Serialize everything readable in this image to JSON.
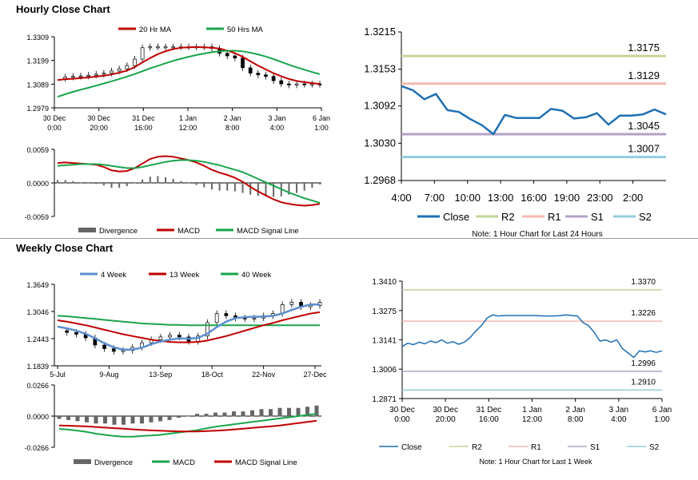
{
  "sections": {
    "hourly_title": "Hourly Close Chart",
    "weekly_title": "Weekly Close Chart"
  },
  "colors": {
    "close": "#1f6fb4",
    "ma_short": "#c00000",
    "ma_long": "#1aa54b",
    "divergence": "#666666",
    "macd": "#c00000",
    "signal": "#1aa54b",
    "r2": "#c3d69b",
    "r1": "#f2b8b0",
    "s1": "#b3a2c7",
    "s2": "#93cddd",
    "week4": "#5b8fd0",
    "week13": "#c00000",
    "week40": "#1aa54b",
    "weekly_macd": "#1aa54b",
    "weekly_signal": "#c00000"
  },
  "chart_data": [
    {
      "id": "hourly_price",
      "type": "candlestick",
      "title": "Hourly Close Chart",
      "legend": [
        "20 Hr MA",
        "50 Hrs MA"
      ],
      "y_ticks": [
        "1.3309",
        "1.3199",
        "1.3089",
        "1.2979"
      ],
      "ylim": [
        1.2979,
        1.3309
      ],
      "x_labels": [
        [
          "30 Dec",
          "0:00"
        ],
        [
          "30 Dec",
          "20:00"
        ],
        [
          "31 Dec",
          "16:00"
        ],
        [
          "1 Jan",
          "12:00"
        ],
        [
          "2 Jan",
          "8:00"
        ],
        [
          "3 Jan",
          "4:00"
        ],
        [
          "6 Jan",
          "1:00"
        ]
      ],
      "close": [
        1.3115,
        1.3122,
        1.3125,
        1.3127,
        1.313,
        1.3135,
        1.314,
        1.315,
        1.316,
        1.3175,
        1.3205,
        1.3258,
        1.3262,
        1.3262,
        1.3262,
        1.3262,
        1.3262,
        1.3262,
        1.3262,
        1.3262,
        1.3255,
        1.3232,
        1.322,
        1.321,
        1.3165,
        1.314,
        1.3132,
        1.3125,
        1.3105,
        1.309,
        1.3085,
        1.309,
        1.3088,
        1.309,
        1.3088
      ],
      "ma20": [
        1.3108,
        1.3112,
        1.3114,
        1.3117,
        1.312,
        1.3124,
        1.3128,
        1.3134,
        1.3142,
        1.3152,
        1.3168,
        1.319,
        1.321,
        1.3228,
        1.3242,
        1.3252,
        1.3258,
        1.326,
        1.3261,
        1.326,
        1.3258,
        1.3254,
        1.3245,
        1.3233,
        1.3216,
        1.3195,
        1.3175,
        1.3157,
        1.314,
        1.3125,
        1.3113,
        1.3104,
        1.3098,
        1.3094,
        1.309
      ],
      "ma50": [
        1.303,
        1.3042,
        1.3053,
        1.3063,
        1.3072,
        1.3082,
        1.3092,
        1.3102,
        1.3113,
        1.3124,
        1.3136,
        1.3149,
        1.3162,
        1.3174,
        1.3186,
        1.3197,
        1.3207,
        1.3216,
        1.3224,
        1.3231,
        1.3237,
        1.3241,
        1.3244,
        1.3244,
        1.3241,
        1.3235,
        1.3227,
        1.3217,
        1.3205,
        1.3192,
        1.3179,
        1.3167,
        1.3156,
        1.3145,
        1.3135
      ]
    },
    {
      "id": "hourly_macd",
      "type": "line",
      "legend": [
        "Divergence",
        "MACD",
        "MACD Signal Line"
      ],
      "y_ticks": [
        "0.0059",
        "0.0000",
        "-0.0059"
      ],
      "ylim": [
        -0.0059,
        0.0059
      ],
      "macd": [
        0.0035,
        0.0036,
        0.0035,
        0.0034,
        0.0033,
        0.0032,
        0.0028,
        0.0022,
        0.002,
        0.0021,
        0.0026,
        0.0034,
        0.0042,
        0.0046,
        0.0047,
        0.0046,
        0.0043,
        0.004,
        0.0036,
        0.003,
        0.0023,
        0.0018,
        0.0014,
        0.0009,
        0.0002,
        -0.0007,
        -0.0015,
        -0.0022,
        -0.0029,
        -0.0034,
        -0.0037,
        -0.0039,
        -0.004,
        -0.0039,
        -0.0037
      ],
      "signal": [
        0.003,
        0.0031,
        0.0032,
        0.0033,
        0.0033,
        0.0033,
        0.0032,
        0.003,
        0.0028,
        0.0026,
        0.0026,
        0.0028,
        0.0031,
        0.0034,
        0.0037,
        0.0039,
        0.004,
        0.004,
        0.0039,
        0.0037,
        0.0034,
        0.0031,
        0.0027,
        0.0023,
        0.0019,
        0.0013,
        0.0007,
        0.0001,
        -0.0005,
        -0.0011,
        -0.0017,
        -0.0022,
        -0.0027,
        -0.0031,
        -0.0035
      ]
    },
    {
      "id": "hourly_24h",
      "type": "line",
      "title": "",
      "y_ticks": [
        "1.3215",
        "1.3153",
        "1.3092",
        "1.3030",
        "1.2968"
      ],
      "ylim": [
        1.2968,
        1.3215
      ],
      "x_ticks": [
        "4:00",
        "7:00",
        "10:00",
        "13:00",
        "16:00",
        "19:00",
        "23:00",
        "2:00"
      ],
      "close": [
        1.3125,
        1.3118,
        1.3103,
        1.3112,
        1.3085,
        1.3082,
        1.307,
        1.306,
        1.3045,
        1.3077,
        1.3072,
        1.3072,
        1.3072,
        1.3087,
        1.3084,
        1.3071,
        1.3073,
        1.308,
        1.3061,
        1.3076,
        1.3076,
        1.3078,
        1.3086,
        1.3078
      ],
      "levels": {
        "R2": 1.3175,
        "R1": 1.3129,
        "S1": 1.3045,
        "S2": 1.3007
      },
      "legend": [
        "Close",
        "R2",
        "R1",
        "S1",
        "S2"
      ],
      "note": "Note: 1 Hour Chart for Last 24 Hours"
    },
    {
      "id": "weekly_price",
      "type": "candlestick",
      "title": "Weekly Close Chart",
      "legend": [
        "4 Week",
        "13 Week",
        "40 Week"
      ],
      "y_ticks": [
        "1.3649",
        "1.3046",
        "1.2443",
        "1.1839"
      ],
      "ylim": [
        1.1839,
        1.3649
      ],
      "x_labels": [
        "5-Jul",
        "9-Aug",
        "13-Sep",
        "18-Oct",
        "22-Nov",
        "27-Dec"
      ],
      "close": [
        1.262,
        1.258,
        1.254,
        1.246,
        1.23,
        1.222,
        1.216,
        1.218,
        1.225,
        1.235,
        1.242,
        1.248,
        1.252,
        1.248,
        1.238,
        1.25,
        1.28,
        1.3,
        1.295,
        1.29,
        1.288,
        1.29,
        1.295,
        1.3,
        1.32,
        1.325,
        1.315,
        1.318,
        1.325
      ],
      "w4": [
        1.271,
        1.267,
        1.262,
        1.255,
        1.245,
        1.234,
        1.225,
        1.22,
        1.22,
        1.224,
        1.232,
        1.238,
        1.242,
        1.245,
        1.244,
        1.246,
        1.255,
        1.27,
        1.282,
        1.29,
        1.292,
        1.293,
        1.293,
        1.295,
        1.3,
        1.308,
        1.315,
        1.32,
        1.32
      ],
      "w13": [
        1.285,
        1.282,
        1.278,
        1.274,
        1.269,
        1.264,
        1.259,
        1.254,
        1.25,
        1.246,
        1.242,
        1.239,
        1.237,
        1.236,
        1.236,
        1.237,
        1.24,
        1.245,
        1.25,
        1.256,
        1.262,
        1.268,
        1.274,
        1.279,
        1.285,
        1.29,
        1.295,
        1.3,
        1.303
      ],
      "w40": [
        1.295,
        1.294,
        1.292,
        1.29,
        1.288,
        1.286,
        1.284,
        1.282,
        1.28,
        1.278,
        1.277,
        1.276,
        1.275,
        1.275,
        1.274,
        1.274,
        1.274,
        1.274,
        1.274,
        1.274,
        1.274,
        1.274,
        1.274,
        1.274,
        1.274,
        1.274,
        1.274,
        1.274,
        1.274
      ]
    },
    {
      "id": "weekly_macd",
      "type": "bar",
      "legend": [
        "Divergence",
        "MACD",
        "MACD Signal Line"
      ],
      "y_ticks": [
        "0.0266",
        "0.0000",
        "-0.0266"
      ],
      "ylim": [
        -0.0266,
        0.0266
      ],
      "divergence": [
        -0.002,
        -0.003,
        -0.004,
        -0.005,
        -0.006,
        -0.006,
        -0.007,
        -0.007,
        -0.006,
        -0.006,
        -0.005,
        -0.004,
        -0.003,
        -0.001,
        0.0,
        0.002,
        0.002,
        0.003,
        0.003,
        0.004,
        0.004,
        0.005,
        0.006,
        0.006,
        0.007,
        0.007,
        0.007,
        0.008,
        0.009
      ],
      "macd": [
        -0.011,
        -0.0115,
        -0.0125,
        -0.0135,
        -0.015,
        -0.016,
        -0.017,
        -0.0175,
        -0.0175,
        -0.017,
        -0.0165,
        -0.016,
        -0.015,
        -0.014,
        -0.013,
        -0.012,
        -0.0105,
        -0.009,
        -0.008,
        -0.007,
        -0.006,
        -0.005,
        -0.004,
        -0.003,
        -0.002,
        -0.001,
        0.0,
        0.001,
        0.002
      ],
      "signal": [
        -0.008,
        -0.0082,
        -0.0085,
        -0.0088,
        -0.0093,
        -0.0098,
        -0.0103,
        -0.0108,
        -0.0113,
        -0.0118,
        -0.0122,
        -0.0125,
        -0.0128,
        -0.013,
        -0.0131,
        -0.0131,
        -0.0128,
        -0.0124,
        -0.012,
        -0.0114,
        -0.0108,
        -0.01,
        -0.0094,
        -0.0088,
        -0.008,
        -0.007,
        -0.006,
        -0.005,
        -0.004
      ]
    },
    {
      "id": "weekly_hourly",
      "type": "line",
      "y_ticks": [
        "1.3410",
        "1.3275",
        "1.3141",
        "1.3006",
        "1.2871"
      ],
      "ylim": [
        1.2871,
        1.341
      ],
      "x_labels": [
        [
          "30 Dec",
          "0:00"
        ],
        [
          "30 Dec",
          "20:00"
        ],
        [
          "31 Dec",
          "16:00"
        ],
        [
          "1 Jan",
          "12:00"
        ],
        [
          "2 Jan",
          "8:00"
        ],
        [
          "3 Jan",
          "4:00"
        ],
        [
          "6 Jan",
          "1:00"
        ]
      ],
      "close": [
        1.311,
        1.3125,
        1.3118,
        1.313,
        1.3122,
        1.3135,
        1.3128,
        1.314,
        1.3125,
        1.3132,
        1.312,
        1.313,
        1.315,
        1.318,
        1.3205,
        1.324,
        1.3255,
        1.325,
        1.3252,
        1.3252,
        1.3252,
        1.3252,
        1.3252,
        1.3252,
        1.3252,
        1.325,
        1.325,
        1.325,
        1.3252,
        1.3255,
        1.3252,
        1.325,
        1.322,
        1.3205,
        1.3175,
        1.3135,
        1.314,
        1.313,
        1.314,
        1.31,
        1.308,
        1.306,
        1.309,
        1.3085,
        1.309,
        1.3083,
        1.309
      ],
      "levels": {
        "R2": 1.337,
        "R1": 1.3226,
        "S1": 1.2996,
        "S2": 1.291
      },
      "level_labels": {
        "R2": "1.3370",
        "R1": "1.3226",
        "S1": "1.2996",
        "S2": "1.2910"
      },
      "legend": [
        "Close",
        "R2",
        "R1",
        "S1",
        "S2"
      ],
      "note": "Note: 1 Hour Chart for Last 1 Week"
    }
  ]
}
